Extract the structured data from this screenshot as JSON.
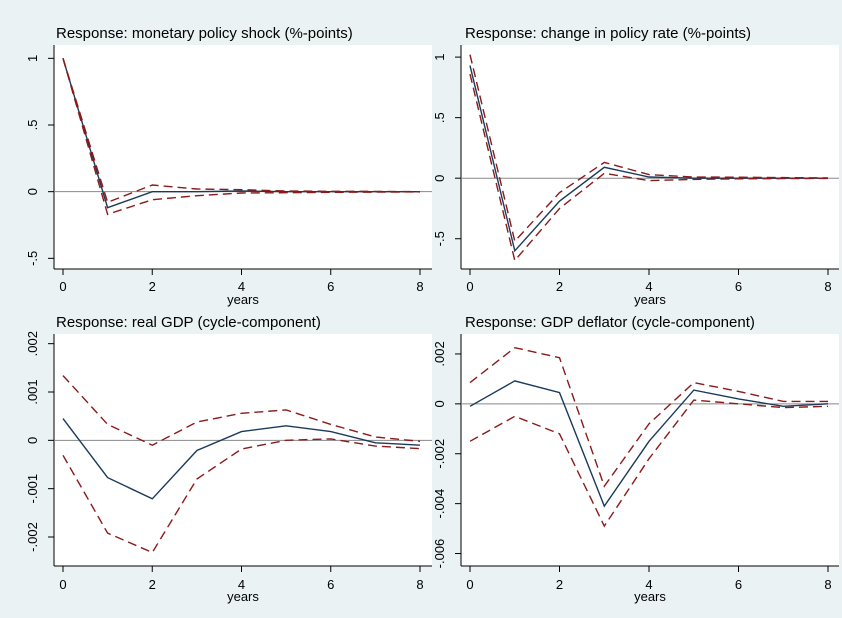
{
  "colors": {
    "background": "#eaf2f3",
    "plot_area": "#ffffff",
    "irf_line": "#1a3a5c",
    "ci_band": "#8b1a1a",
    "zero_line": "#888888"
  },
  "chart_data": [
    {
      "type": "line",
      "title": "Response: monetary policy shock (%-points)",
      "xlabel": "years",
      "ylabel": "",
      "x": [
        0,
        1,
        2,
        3,
        4,
        5,
        6,
        7,
        8
      ],
      "xticks": [
        0,
        2,
        4,
        6,
        8
      ],
      "xtick_labels": [
        "0",
        "2",
        "4",
        "6",
        "8"
      ],
      "yticks": [
        -0.5,
        0,
        0.5,
        1
      ],
      "ytick_labels": [
        "-.5",
        "0",
        ".5",
        "1"
      ],
      "xlim": [
        0,
        8
      ],
      "ylim": [
        -0.58,
        1.1
      ],
      "zero_line": true,
      "grid": false,
      "series": [
        {
          "role": "irf",
          "style": "solid",
          "values": [
            1.0,
            -0.12,
            0.0,
            0.0,
            0.005,
            0.0,
            0.0,
            0.0,
            0.0
          ]
        },
        {
          "role": "upper",
          "style": "dashed",
          "values": [
            1.0,
            -0.08,
            0.05,
            0.02,
            0.015,
            0.005,
            0.003,
            0.002,
            0.0
          ]
        },
        {
          "role": "lower",
          "style": "dashed",
          "values": [
            1.0,
            -0.17,
            -0.06,
            -0.03,
            -0.01,
            -0.008,
            -0.005,
            -0.003,
            -0.002
          ]
        }
      ]
    },
    {
      "type": "line",
      "title": "Response: change in policy rate (%-points)",
      "xlabel": "years",
      "ylabel": "",
      "x": [
        0,
        1,
        2,
        3,
        4,
        5,
        6,
        7,
        8
      ],
      "xticks": [
        0,
        2,
        4,
        6,
        8
      ],
      "xtick_labels": [
        "0",
        "2",
        "4",
        "6",
        "8"
      ],
      "yticks": [
        -0.5,
        0,
        0.5,
        1
      ],
      "ytick_labels": [
        "-.5",
        "0",
        ".5",
        "1"
      ],
      "xlim": [
        0,
        8
      ],
      "ylim": [
        -0.75,
        1.1
      ],
      "zero_line": true,
      "grid": false,
      "series": [
        {
          "role": "irf",
          "style": "solid",
          "values": [
            0.93,
            -0.6,
            -0.19,
            0.09,
            0.01,
            0.0,
            0.0,
            0.0,
            0.0
          ]
        },
        {
          "role": "upper",
          "style": "dashed",
          "values": [
            1.02,
            -0.52,
            -0.12,
            0.13,
            0.03,
            0.01,
            0.008,
            0.005,
            0.002
          ]
        },
        {
          "role": "lower",
          "style": "dashed",
          "values": [
            0.86,
            -0.68,
            -0.25,
            0.04,
            -0.02,
            -0.01,
            -0.005,
            -0.003,
            -0.002
          ]
        }
      ]
    },
    {
      "type": "line",
      "title": "Response: real GDP (cycle-component)",
      "xlabel": "years",
      "ylabel": "",
      "x": [
        0,
        1,
        2,
        3,
        4,
        5,
        6,
        7,
        8
      ],
      "xticks": [
        0,
        2,
        4,
        6,
        8
      ],
      "xtick_labels": [
        "0",
        "2",
        "4",
        "6",
        "8"
      ],
      "yticks": [
        -0.002,
        -0.001,
        0,
        0.001,
        0.002
      ],
      "ytick_labels": [
        "-.002",
        "-.001",
        "0",
        ".001",
        ".002"
      ],
      "xlim": [
        0,
        8
      ],
      "ylim": [
        -0.0026,
        0.0022
      ],
      "zero_line": true,
      "grid": false,
      "series": [
        {
          "role": "irf",
          "style": "solid",
          "values": [
            0.00045,
            -0.00077,
            -0.00121,
            -0.00021,
            0.00018,
            0.0003,
            0.00018,
            -5e-05,
            -0.0001
          ]
        },
        {
          "role": "upper",
          "style": "dashed",
          "values": [
            0.00134,
            0.00033,
            -0.0001,
            0.00038,
            0.00056,
            0.00063,
            0.00033,
            7e-05,
            -2e-05
          ]
        },
        {
          "role": "lower",
          "style": "dashed",
          "values": [
            -0.00031,
            -0.00192,
            -0.00232,
            -0.0008,
            -0.00018,
            0.0,
            3e-05,
            -0.00012,
            -0.00017
          ]
        }
      ]
    },
    {
      "type": "line",
      "title": "Response: GDP deflator (cycle-component)",
      "xlabel": "years",
      "ylabel": "",
      "x": [
        0,
        1,
        2,
        3,
        4,
        5,
        6,
        7,
        8
      ],
      "xticks": [
        0,
        2,
        4,
        6,
        8
      ],
      "xtick_labels": [
        "0",
        "2",
        "4",
        "6",
        "8"
      ],
      "yticks": [
        -0.006,
        -0.004,
        -0.002,
        0,
        0.002
      ],
      "ytick_labels": [
        "-.006",
        "-.004",
        "-.002",
        "0",
        ".002"
      ],
      "xlim": [
        0,
        8
      ],
      "ylim": [
        -0.0065,
        0.0028
      ],
      "zero_line": true,
      "grid": false,
      "series": [
        {
          "role": "irf",
          "style": "solid",
          "values": [
            -0.0001,
            0.00092,
            0.00045,
            -0.0041,
            -0.0015,
            0.00055,
            0.0002,
            -0.0001,
            0.0
          ]
        },
        {
          "role": "upper",
          "style": "dashed",
          "values": [
            0.00085,
            0.00225,
            0.00185,
            -0.0033,
            -0.0008,
            0.00085,
            0.0005,
            0.0001,
            0.0001
          ]
        },
        {
          "role": "lower",
          "style": "dashed",
          "values": [
            -0.0015,
            -0.0005,
            -0.0012,
            -0.0049,
            -0.0022,
            0.00015,
            0.0,
            -0.00015,
            -0.0001
          ]
        }
      ]
    }
  ]
}
